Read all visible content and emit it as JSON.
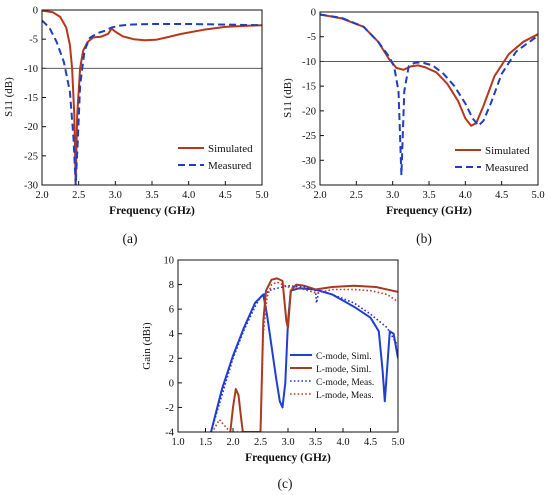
{
  "figure": {
    "captions": [
      "(a)",
      "(b)",
      "(c)"
    ]
  },
  "chart_data": [
    {
      "type": "line",
      "caption": "(a)",
      "xlabel": "Frequency (GHz)",
      "ylabel": "S11 (dB)",
      "xlim": [
        2.0,
        5.0
      ],
      "ylim": [
        -30,
        0
      ],
      "xticks": [
        "2.0",
        "2.5",
        "3.0",
        "3.5",
        "4.0",
        "4.5",
        "5.0"
      ],
      "yticks": [
        "0",
        "-5",
        "-10",
        "-15",
        "-20",
        "-25",
        "-30"
      ],
      "reference_line": -10,
      "legend_position": "bottom-right",
      "series": [
        {
          "name": "Simulated",
          "color": "#b5371c",
          "dash": "solid",
          "points": [
            [
              2.0,
              -0.1
            ],
            [
              2.15,
              -0.4
            ],
            [
              2.25,
              -1.2
            ],
            [
              2.33,
              -3
            ],
            [
              2.38,
              -6
            ],
            [
              2.41,
              -10
            ],
            [
              2.44,
              -18
            ],
            [
              2.46,
              -29.5
            ],
            [
              2.48,
              -18
            ],
            [
              2.52,
              -10
            ],
            [
              2.56,
              -7
            ],
            [
              2.62,
              -5.5
            ],
            [
              2.7,
              -4.7
            ],
            [
              2.8,
              -4.6
            ],
            [
              2.9,
              -4.1
            ],
            [
              2.95,
              -3.2
            ],
            [
              3.0,
              -3.7
            ],
            [
              3.1,
              -4.5
            ],
            [
              3.25,
              -5.0
            ],
            [
              3.4,
              -5.2
            ],
            [
              3.55,
              -5.1
            ],
            [
              3.7,
              -4.7
            ],
            [
              3.9,
              -4.1
            ],
            [
              4.2,
              -3.4
            ],
            [
              4.5,
              -2.9
            ],
            [
              4.8,
              -2.7
            ],
            [
              5.0,
              -2.6
            ]
          ]
        },
        {
          "name": "Measured",
          "color": "#1f3fbf",
          "dash": "dashed",
          "points": [
            [
              2.0,
              -1.8
            ],
            [
              2.1,
              -3
            ],
            [
              2.2,
              -5.5
            ],
            [
              2.3,
              -9
            ],
            [
              2.38,
              -14
            ],
            [
              2.43,
              -22
            ],
            [
              2.46,
              -30
            ],
            [
              2.49,
              -22
            ],
            [
              2.52,
              -13
            ],
            [
              2.58,
              -7
            ],
            [
              2.65,
              -4.8
            ],
            [
              2.75,
              -4.0
            ],
            [
              2.85,
              -3.6
            ],
            [
              2.95,
              -3.0
            ],
            [
              3.05,
              -2.7
            ],
            [
              3.2,
              -2.5
            ],
            [
              3.5,
              -2.4
            ],
            [
              4.0,
              -2.4
            ],
            [
              4.5,
              -2.5
            ],
            [
              5.0,
              -2.6
            ]
          ]
        }
      ]
    },
    {
      "type": "line",
      "caption": "(b)",
      "xlabel": "Frequency (GHz)",
      "ylabel": "S11 (dB)",
      "xlim": [
        2.0,
        5.0
      ],
      "ylim": [
        -35,
        0
      ],
      "xticks": [
        "2.0",
        "2.5",
        "3.0",
        "3.5",
        "4.0",
        "4.5",
        "5.0"
      ],
      "yticks": [
        "0",
        "-5",
        "-10",
        "-15",
        "-20",
        "-25",
        "-30",
        "-35"
      ],
      "reference_line": -10,
      "legend_position": "bottom-right",
      "series": [
        {
          "name": "Simulated",
          "color": "#b5371c",
          "dash": "solid",
          "points": [
            [
              2.0,
              -0.5
            ],
            [
              2.3,
              -1.3
            ],
            [
              2.6,
              -3
            ],
            [
              2.8,
              -6
            ],
            [
              2.95,
              -9.5
            ],
            [
              3.05,
              -11.3
            ],
            [
              3.15,
              -11.7
            ],
            [
              3.25,
              -11.0
            ],
            [
              3.35,
              -10.8
            ],
            [
              3.45,
              -11.2
            ],
            [
              3.6,
              -12.2
            ],
            [
              3.75,
              -14.5
            ],
            [
              3.9,
              -18
            ],
            [
              4.0,
              -21.5
            ],
            [
              4.08,
              -23
            ],
            [
              4.15,
              -22.5
            ],
            [
              4.25,
              -19
            ],
            [
              4.4,
              -13
            ],
            [
              4.6,
              -8.5
            ],
            [
              4.8,
              -6
            ],
            [
              5.0,
              -4.5
            ]
          ]
        },
        {
          "name": "Measured",
          "color": "#1f3fbf",
          "dash": "dashed",
          "points": [
            [
              2.0,
              -0.5
            ],
            [
              2.3,
              -1.2
            ],
            [
              2.6,
              -3
            ],
            [
              2.8,
              -6
            ],
            [
              2.95,
              -9
            ],
            [
              3.02,
              -11
            ],
            [
              3.08,
              -16
            ],
            [
              3.12,
              -33
            ],
            [
              3.16,
              -16
            ],
            [
              3.22,
              -11
            ],
            [
              3.3,
              -10.3
            ],
            [
              3.4,
              -10.2
            ],
            [
              3.55,
              -10.8
            ],
            [
              3.7,
              -12.5
            ],
            [
              3.85,
              -15
            ],
            [
              4.0,
              -18.5
            ],
            [
              4.1,
              -21.5
            ],
            [
              4.18,
              -23
            ],
            [
              4.25,
              -22
            ],
            [
              4.35,
              -18.5
            ],
            [
              4.5,
              -12.5
            ],
            [
              4.7,
              -8
            ],
            [
              5.0,
              -4.8
            ]
          ]
        }
      ]
    },
    {
      "type": "line",
      "caption": "(c)",
      "xlabel": "Frequency (GHz)",
      "ylabel": "Gain (dBi)",
      "xlim": [
        1.0,
        5.0
      ],
      "ylim": [
        -4,
        10
      ],
      "xticks": [
        "1.0",
        "1.5",
        "2.0",
        "2.5",
        "3.0",
        "3.5",
        "4.0",
        "4.5",
        "5.0"
      ],
      "yticks": [
        "10",
        "8",
        "6",
        "4",
        "2",
        "0",
        "-2",
        "-4"
      ],
      "legend_position": "bottom-right",
      "series": [
        {
          "name": "C-mode, Siml.",
          "color": "#1f3fd0",
          "dash": "solid",
          "points": [
            [
              1.6,
              -4
            ],
            [
              1.8,
              -0.5
            ],
            [
              2.0,
              2.2
            ],
            [
              2.2,
              4.5
            ],
            [
              2.4,
              6.5
            ],
            [
              2.55,
              7.2
            ],
            [
              2.62,
              5.5
            ],
            [
              2.7,
              3
            ],
            [
              2.78,
              0.5
            ],
            [
              2.85,
              -1.5
            ],
            [
              2.9,
              -2.0
            ],
            [
              2.95,
              0
            ],
            [
              3.0,
              5
            ],
            [
              3.05,
              7.5
            ],
            [
              3.2,
              7.7
            ],
            [
              3.5,
              7.6
            ],
            [
              3.8,
              7.2
            ],
            [
              4.2,
              6.2
            ],
            [
              4.5,
              5.3
            ],
            [
              4.65,
              4.2
            ],
            [
              4.72,
              1.0
            ],
            [
              4.76,
              -1.5
            ],
            [
              4.8,
              1.0
            ],
            [
              4.85,
              4.2
            ],
            [
              4.92,
              4.0
            ],
            [
              5.0,
              2.0
            ]
          ]
        },
        {
          "name": "L-mode, Siml.",
          "color": "#a63b1f",
          "dash": "solid",
          "points": [
            [
              1.95,
              -4
            ],
            [
              2.0,
              -2
            ],
            [
              2.05,
              -0.5
            ],
            [
              2.1,
              -1
            ],
            [
              2.15,
              -3
            ],
            [
              2.18,
              -4
            ],
            [
              2.5,
              -4
            ],
            [
              2.55,
              5
            ],
            [
              2.6,
              7.5
            ],
            [
              2.7,
              8.4
            ],
            [
              2.8,
              8.5
            ],
            [
              2.9,
              8.3
            ],
            [
              2.97,
              5.0
            ],
            [
              3.0,
              4.5
            ],
            [
              3.05,
              7.5
            ],
            [
              3.15,
              8.0
            ],
            [
              3.3,
              7.9
            ],
            [
              3.5,
              7.6
            ],
            [
              3.8,
              7.8
            ],
            [
              4.2,
              7.9
            ],
            [
              4.6,
              7.8
            ],
            [
              5.0,
              7.4
            ]
          ]
        },
        {
          "name": "C-mode, Meas.",
          "color": "#2233dd",
          "dash": "dotted",
          "points": [
            [
              1.6,
              -4
            ],
            [
              1.8,
              -1
            ],
            [
              2.0,
              2
            ],
            [
              2.2,
              4.3
            ],
            [
              2.4,
              6.2
            ],
            [
              2.5,
              7.0
            ],
            [
              2.6,
              7.3
            ],
            [
              2.7,
              7.6
            ],
            [
              2.8,
              7.7
            ],
            [
              3.0,
              7.9
            ],
            [
              3.3,
              7.8
            ],
            [
              3.5,
              7.5
            ],
            [
              3.52,
              6.5
            ],
            [
              3.56,
              7.5
            ],
            [
              3.8,
              7.2
            ],
            [
              4.2,
              6.5
            ],
            [
              4.5,
              5.6
            ],
            [
              4.8,
              4.5
            ],
            [
              5.0,
              3.0
            ]
          ]
        },
        {
          "name": "L-mode, Meas.",
          "color": "#c0392b",
          "dash": "dotted",
          "points": [
            [
              1.65,
              -3.8
            ],
            [
              1.75,
              -3.0
            ],
            [
              1.85,
              -3.5
            ],
            [
              1.95,
              -4
            ],
            [
              2.5,
              -4
            ],
            [
              2.55,
              4
            ],
            [
              2.62,
              7
            ],
            [
              2.7,
              8.0
            ],
            [
              2.8,
              8.2
            ],
            [
              2.9,
              8.0
            ],
            [
              3.0,
              7.8
            ],
            [
              3.3,
              7.6
            ],
            [
              3.52,
              7.3
            ],
            [
              3.8,
              7.6
            ],
            [
              4.2,
              7.6
            ],
            [
              4.5,
              7.5
            ],
            [
              4.8,
              7.2
            ],
            [
              5.0,
              6.6
            ]
          ]
        }
      ]
    }
  ]
}
